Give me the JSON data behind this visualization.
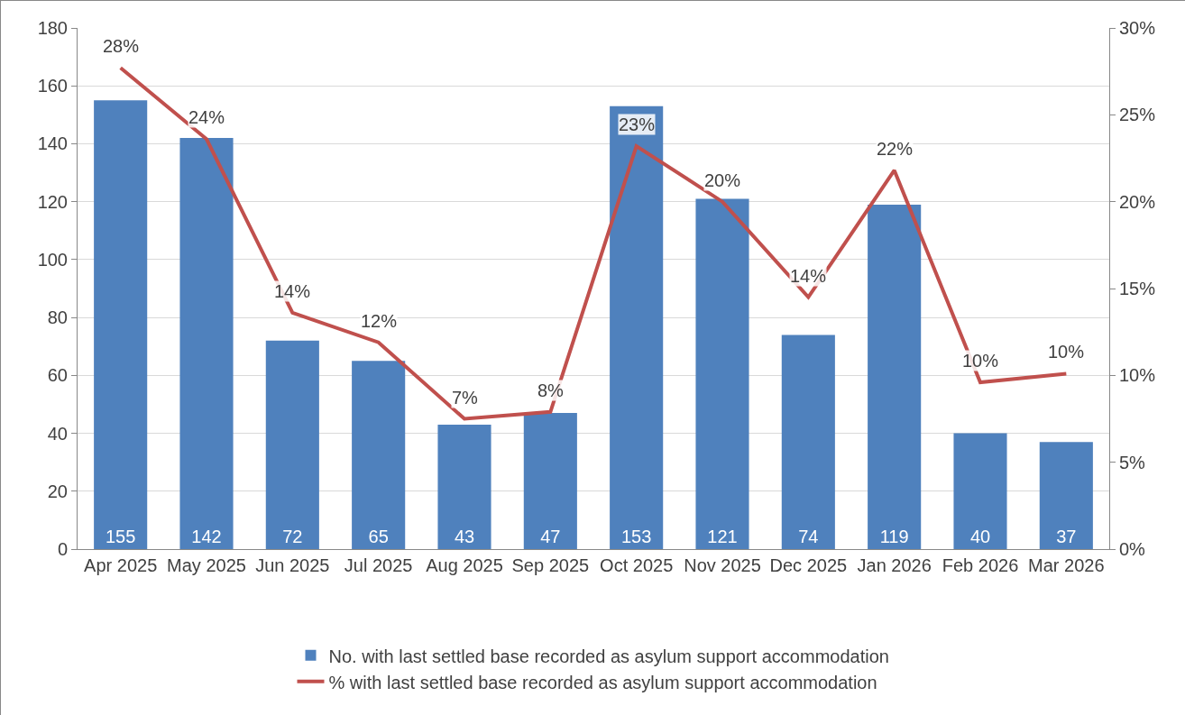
{
  "chart_data": {
    "type": "bar",
    "categories": [
      "Apr 2025",
      "May 2025",
      "Jun 2025",
      "Jul 2025",
      "Aug 2025",
      "Sep 2025",
      "Oct 2025",
      "Nov 2025",
      "Dec 2025",
      "Jan 2026",
      "Feb 2026",
      "Mar 2026"
    ],
    "series": [
      {
        "name": "No. with last settled base recorded as asylum support accommodation",
        "color": "#4f81bd",
        "values": [
          155,
          142,
          72,
          65,
          43,
          47,
          153,
          121,
          74,
          119,
          40,
          37
        ],
        "data_labels": true
      },
      {
        "name": "% with last settled base recorded as asylum support accommodation",
        "type": "line",
        "axis": "y2",
        "color": "#c0504d",
        "values": [
          27.7,
          23.6,
          13.6,
          11.9,
          7.5,
          7.9,
          23.2,
          20.0,
          14.5,
          21.8,
          9.6,
          10.1
        ],
        "value_labels": [
          "28%",
          "24%",
          "14%",
          "12%",
          "7%",
          "8%",
          "23%",
          "20%",
          "14%",
          "22%",
          "10%",
          "10%"
        ]
      }
    ],
    "ylim": [
      0,
      180
    ],
    "yticks": [
      0,
      20,
      40,
      60,
      80,
      100,
      120,
      140,
      160,
      180
    ],
    "y2lim": [
      0,
      30
    ],
    "y2ticks": [
      {
        "value": 0,
        "label": "0%"
      },
      {
        "value": 5,
        "label": "5%"
      },
      {
        "value": 10,
        "label": "10%"
      },
      {
        "value": 15,
        "label": "15%"
      },
      {
        "value": 20,
        "label": "20%"
      },
      {
        "value": 25,
        "label": "25%"
      },
      {
        "value": 30,
        "label": "30%"
      }
    ],
    "grid": "y",
    "legend": "bottom",
    "marker": "none",
    "line_style": "solid"
  }
}
